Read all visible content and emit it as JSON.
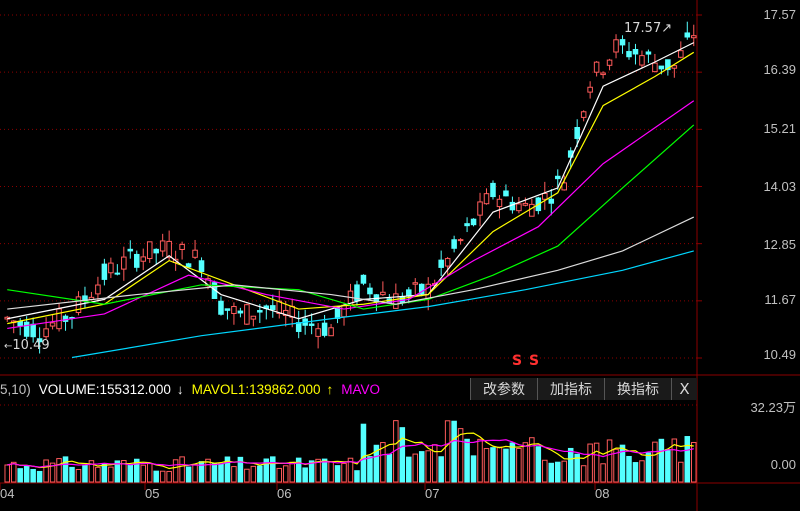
{
  "price_axis": {
    "labels": [
      "17.57",
      "16.39",
      "15.21",
      "14.03",
      "12.85",
      "11.67",
      "10.49"
    ]
  },
  "annotations": {
    "high_value": "17.57",
    "low_value": "10.49",
    "high_arrow": "↗",
    "low_arrow": "←"
  },
  "volume_header": {
    "prefix": "5,10)",
    "volume": "VOLUME:155312.000",
    "volume_arrow": "↓",
    "mavol1": "MAVOL1:139862.000",
    "mavol1_arrow": "↑",
    "mavol2_partial": "MAVO"
  },
  "toolbar": {
    "edit_params": "改参数",
    "add_indicator": "加指标",
    "switch_indicator": "换指标",
    "close": "X"
  },
  "volume_axis": {
    "top": "32.23万",
    "bottom": "0.00"
  },
  "x_axis": {
    "labels": [
      "04",
      "05",
      "06",
      "07",
      "08"
    ]
  },
  "signals": {
    "sell_marker": "S"
  },
  "colors": {
    "up": "#ff5b5b",
    "down": "#54ffff",
    "ma5": "#ffffff",
    "ma10": "#ffff00",
    "ma20": "#ff00ff",
    "ma30": "#00ff00",
    "ma60": "#dcdcdc",
    "ma120": "#00d7ff",
    "grid": "#8b0000"
  },
  "chart_data": [
    {
      "type": "candlestick",
      "ylim": [
        10.49,
        17.57
      ],
      "price_ticks": [
        17.57,
        16.39,
        15.21,
        14.03,
        12.85,
        11.67,
        10.49
      ],
      "month_labels": [
        "04",
        "05",
        "06",
        "07",
        "08"
      ],
      "high": 17.57,
      "low": 10.49,
      "trend": [
        [
          0,
          11.3
        ],
        [
          5,
          11.05
        ],
        [
          10,
          11.4
        ],
        [
          15,
          12.2
        ],
        [
          20,
          12.6
        ],
        [
          25,
          12.75
        ],
        [
          30,
          12.5
        ],
        [
          33,
          11.6
        ],
        [
          36,
          11.35
        ],
        [
          40,
          11.55
        ],
        [
          45,
          11.25
        ],
        [
          50,
          11.1
        ],
        [
          52,
          11.5
        ],
        [
          55,
          12.0
        ],
        [
          60,
          11.7
        ],
        [
          65,
          11.9
        ],
        [
          70,
          12.9
        ],
        [
          75,
          13.9
        ],
        [
          80,
          13.6
        ],
        [
          83,
          13.8
        ],
        [
          86,
          14.2
        ],
        [
          90,
          16.2
        ],
        [
          94,
          16.9
        ],
        [
          97,
          16.8
        ],
        [
          100,
          16.6
        ],
        [
          103,
          16.5
        ],
        [
          106,
          17.2
        ]
      ],
      "series": [
        {
          "name": "MA5",
          "points": [
            [
              0,
              11.3
            ],
            [
              15,
              11.7
            ],
            [
              25,
              12.6
            ],
            [
              33,
              11.8
            ],
            [
              45,
              11.3
            ],
            [
              55,
              11.7
            ],
            [
              65,
              11.8
            ],
            [
              75,
              13.5
            ],
            [
              85,
              14.0
            ],
            [
              92,
              16.1
            ],
            [
              100,
              16.6
            ],
            [
              106,
              17.0
            ]
          ]
        },
        {
          "name": "MA10",
          "points": [
            [
              0,
              11.2
            ],
            [
              15,
              11.6
            ],
            [
              25,
              12.5
            ],
            [
              35,
              12.0
            ],
            [
              45,
              11.5
            ],
            [
              55,
              11.6
            ],
            [
              65,
              11.8
            ],
            [
              75,
              13.1
            ],
            [
              85,
              13.9
            ],
            [
              92,
              15.7
            ],
            [
              100,
              16.3
            ],
            [
              106,
              16.8
            ]
          ]
        },
        {
          "name": "MA20",
          "points": [
            [
              0,
              11.1
            ],
            [
              15,
              11.4
            ],
            [
              28,
              12.2
            ],
            [
              40,
              11.8
            ],
            [
              52,
              11.5
            ],
            [
              62,
              11.7
            ],
            [
              72,
              12.5
            ],
            [
              82,
              13.2
            ],
            [
              92,
              14.5
            ],
            [
              106,
              15.8
            ]
          ]
        },
        {
          "name": "MA30",
          "points": [
            [
              0,
              11.9
            ],
            [
              15,
              11.6
            ],
            [
              30,
              12.0
            ],
            [
              45,
              11.9
            ],
            [
              55,
              11.5
            ],
            [
              65,
              11.7
            ],
            [
              75,
              12.2
            ],
            [
              85,
              12.8
            ],
            [
              95,
              14.0
            ],
            [
              106,
              15.3
            ]
          ]
        },
        {
          "name": "MA60",
          "points": [
            [
              0,
              11.5
            ],
            [
              20,
              11.8
            ],
            [
              35,
              12.0
            ],
            [
              50,
              11.8
            ],
            [
              60,
              11.6
            ],
            [
              72,
              11.9
            ],
            [
              85,
              12.3
            ],
            [
              95,
              12.7
            ],
            [
              106,
              13.4
            ]
          ]
        },
        {
          "name": "MA120",
          "points": [
            [
              10,
              10.5
            ],
            [
              30,
              10.95
            ],
            [
              50,
              11.3
            ],
            [
              65,
              11.55
            ],
            [
              80,
              11.9
            ],
            [
              95,
              12.3
            ],
            [
              106,
              12.7
            ]
          ]
        }
      ]
    },
    {
      "type": "bar",
      "title": "VOLUME",
      "ylim": [
        0,
        322300
      ],
      "volume_ticks": [
        "32.23万",
        "0.00"
      ],
      "volume_last": 155312,
      "mavol1_last": 139862
    }
  ]
}
